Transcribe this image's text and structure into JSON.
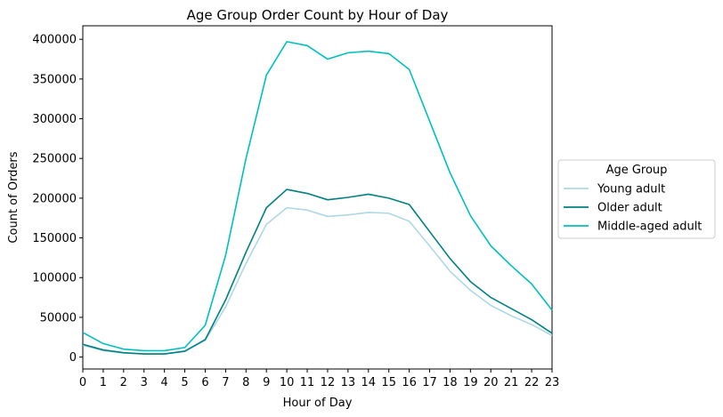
{
  "chart_data": {
    "type": "line",
    "title": "Age Group Order Count by Hour of Day",
    "xlabel": "Hour of Day",
    "ylabel": "Count of Orders",
    "x": [
      0,
      1,
      2,
      3,
      4,
      5,
      6,
      7,
      8,
      9,
      10,
      11,
      12,
      13,
      14,
      15,
      16,
      17,
      18,
      19,
      20,
      21,
      22,
      23
    ],
    "xlim": [
      0,
      23
    ],
    "ylim": [
      -15000,
      417000
    ],
    "yticks": [
      0,
      50000,
      100000,
      150000,
      200000,
      250000,
      300000,
      350000,
      400000
    ],
    "grid": false,
    "legend": {
      "title": "Age Group",
      "placement": "center-right-outside"
    },
    "series": [
      {
        "name": "Young adult",
        "color": "#add8e6",
        "values": [
          15000,
          8000,
          5000,
          4000,
          4000,
          7000,
          21000,
          63000,
          118000,
          167000,
          188000,
          185000,
          177000,
          179000,
          182000,
          181000,
          171000,
          140000,
          108000,
          84000,
          65000,
          52000,
          41000,
          27000
        ]
      },
      {
        "name": "Older adult",
        "color": "#008080",
        "values": [
          16000,
          9000,
          5500,
          4000,
          4000,
          7500,
          22000,
          72000,
          132000,
          188000,
          211000,
          206000,
          198000,
          201000,
          205000,
          200000,
          192000,
          158000,
          124000,
          95000,
          75000,
          61000,
          47000,
          30000
        ]
      },
      {
        "name": "Middle-aged adult",
        "color": "#00bfbf",
        "values": [
          31000,
          17000,
          10000,
          8000,
          8000,
          12000,
          40000,
          128000,
          250000,
          355000,
          397000,
          392000,
          375000,
          383000,
          385000,
          382000,
          362000,
          297000,
          232000,
          178000,
          140000,
          115000,
          92000,
          59000
        ]
      }
    ]
  }
}
